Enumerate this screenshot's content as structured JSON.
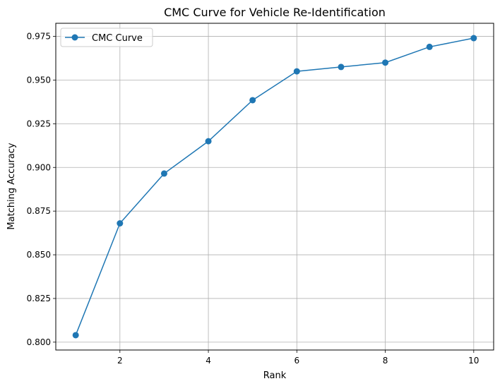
{
  "chart_data": {
    "type": "line",
    "title": "CMC Curve for Vehicle Re-Identification",
    "xlabel": "Rank",
    "ylabel": "Matching Accuracy",
    "xlim": [
      0.55,
      10.45
    ],
    "ylim": [
      0.7955,
      0.9825
    ],
    "xticks": [
      2,
      4,
      6,
      8,
      10
    ],
    "xtick_labels": [
      "2",
      "4",
      "6",
      "8",
      "10"
    ],
    "yticks": [
      0.8,
      0.825,
      0.85,
      0.875,
      0.9,
      0.925,
      0.95,
      0.975
    ],
    "ytick_labels": [
      "0.800",
      "0.825",
      "0.850",
      "0.875",
      "0.900",
      "0.925",
      "0.950",
      "0.975"
    ],
    "grid": true,
    "legend_position": "top-left",
    "series": [
      {
        "name": "CMC Curve",
        "color": "#1f77b4",
        "marker": "circle",
        "x": [
          1,
          2,
          3,
          4,
          5,
          6,
          7,
          8,
          9,
          10
        ],
        "y": [
          0.804,
          0.868,
          0.8965,
          0.915,
          0.9385,
          0.955,
          0.9575,
          0.96,
          0.969,
          0.974
        ]
      }
    ]
  }
}
